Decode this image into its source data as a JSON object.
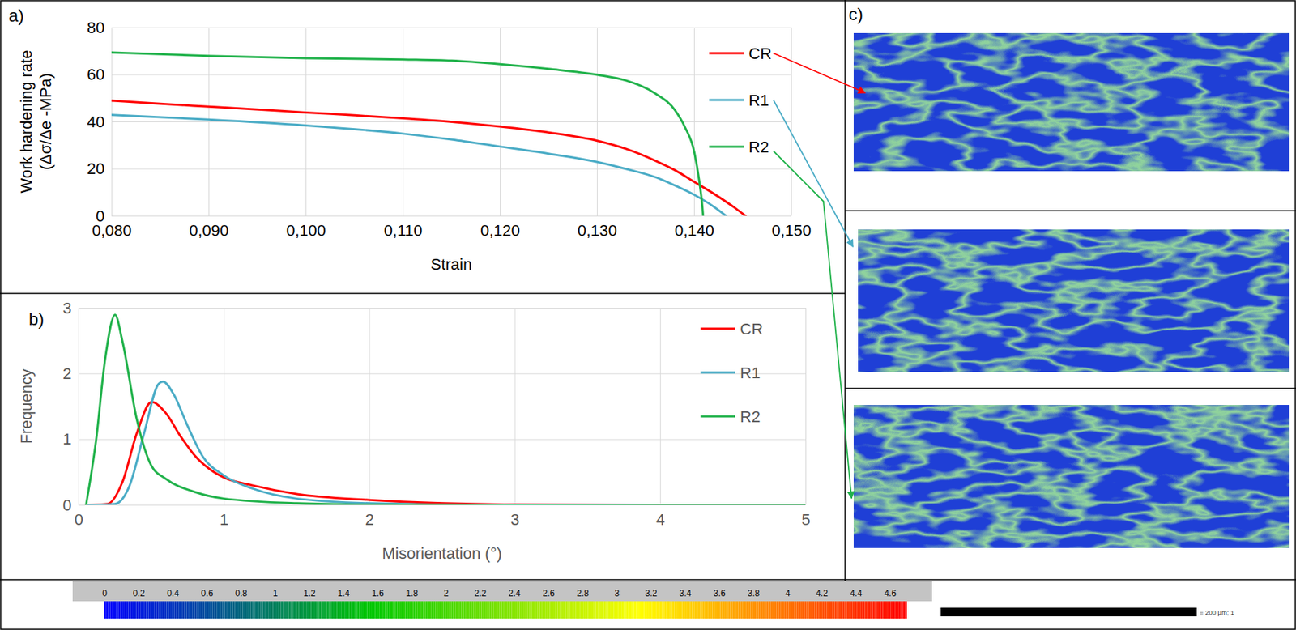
{
  "chart_data": [
    {
      "panel": "a)",
      "type": "line",
      "xlabel": "Strain",
      "ylabel": "Work hardening rate (Δσ/Δe -MPa)",
      "xlim": [
        0.08,
        0.15
      ],
      "xticks": [
        {
          "value": 0.08,
          "label": "0,080"
        },
        {
          "value": 0.09,
          "label": "0,090"
        },
        {
          "value": 0.1,
          "label": "0,100"
        },
        {
          "value": 0.11,
          "label": "0,110"
        },
        {
          "value": 0.12,
          "label": "0,120"
        },
        {
          "value": 0.13,
          "label": "0,130"
        },
        {
          "value": 0.14,
          "label": "0,140"
        },
        {
          "value": 0.15,
          "label": "0,150"
        }
      ],
      "ylim": [
        0,
        80
      ],
      "yticks": [
        0,
        20,
        40,
        60,
        80
      ],
      "grid": true,
      "legend": "top-right",
      "series": [
        {
          "name": "CR",
          "color": "#ff0000",
          "x": [
            0.08,
            0.085,
            0.09,
            0.095,
            0.1,
            0.105,
            0.11,
            0.115,
            0.12,
            0.125,
            0.13,
            0.133,
            0.136,
            0.138,
            0.14,
            0.142,
            0.144,
            0.1453
          ],
          "values": [
            49,
            47.7,
            46.5,
            45.3,
            44,
            42.8,
            41.5,
            40,
            38,
            35.5,
            32,
            28.5,
            23.5,
            19.5,
            14.5,
            9.5,
            4,
            0
          ]
        },
        {
          "name": "R1",
          "color": "#4bacc6",
          "x": [
            0.08,
            0.09,
            0.1,
            0.11,
            0.115,
            0.12,
            0.125,
            0.13,
            0.133,
            0.136,
            0.138,
            0.14,
            0.142,
            0.1433
          ],
          "values": [
            43,
            41,
            38.5,
            35,
            32.5,
            29.5,
            26.5,
            23,
            20,
            16.5,
            13,
            9,
            4,
            0
          ]
        },
        {
          "name": "R2",
          "color": "#21b24b",
          "x": [
            0.08,
            0.09,
            0.1,
            0.11,
            0.115,
            0.12,
            0.125,
            0.13,
            0.133,
            0.136,
            0.138,
            0.139,
            0.14,
            0.1405,
            0.1408,
            0.1409
          ],
          "values": [
            69.5,
            68,
            67,
            66.5,
            66,
            64.5,
            62.5,
            60,
            57.5,
            52,
            45,
            38,
            27,
            15,
            5,
            0
          ]
        }
      ]
    },
    {
      "panel": "b)",
      "type": "line",
      "xlabel": "Misorientation (°)",
      "ylabel": "Frequency",
      "xlim": [
        0,
        5
      ],
      "xticks": [
        0,
        1,
        2,
        3,
        4,
        5
      ],
      "ylim": [
        0,
        3
      ],
      "yticks": [
        0,
        1,
        2,
        3
      ],
      "grid": true,
      "legend": "top-right",
      "series": [
        {
          "name": "CR",
          "color": "#ff0000",
          "x": [
            0.05,
            0.2,
            0.3,
            0.4,
            0.5,
            0.6,
            0.7,
            0.8,
            0.9,
            1.0,
            1.2,
            1.5,
            2.0,
            2.5,
            3.0,
            4.0,
            5.0
          ],
          "values": [
            0,
            0.02,
            0.35,
            1.1,
            1.57,
            1.4,
            1.05,
            0.75,
            0.55,
            0.42,
            0.3,
            0.17,
            0.08,
            0.03,
            0.01,
            0,
            0
          ]
        },
        {
          "name": "R1",
          "color": "#4bacc6",
          "x": [
            0.05,
            0.25,
            0.35,
            0.45,
            0.55,
            0.58,
            0.65,
            0.75,
            0.85,
            1.0,
            1.2,
            1.5,
            2.0,
            3.0,
            4.0,
            5.0
          ],
          "values": [
            0,
            0.02,
            0.3,
            1.1,
            1.85,
            1.88,
            1.7,
            1.2,
            0.75,
            0.45,
            0.25,
            0.1,
            0.03,
            0,
            0,
            0
          ]
        },
        {
          "name": "R2",
          "color": "#21b24b",
          "x": [
            0.05,
            0.12,
            0.18,
            0.25,
            0.3,
            0.4,
            0.5,
            0.6,
            0.8,
            1.0,
            1.5,
            2.0,
            3.0,
            5.0
          ],
          "values": [
            0,
            1.0,
            2.2,
            2.9,
            2.5,
            1.3,
            0.6,
            0.4,
            0.2,
            0.1,
            0.03,
            0.01,
            0,
            0
          ]
        }
      ]
    }
  ],
  "panel_c": {
    "panel": "c)",
    "maps": [
      "CR",
      "R1",
      "R2"
    ]
  },
  "colorbar": {
    "range": [
      0,
      4.7
    ],
    "ticks": [
      0,
      0.2,
      0.4,
      0.6,
      0.8,
      1,
      1.2,
      1.4,
      1.6,
      1.8,
      2,
      2.2,
      2.4,
      2.6,
      2.8,
      3,
      3.2,
      3.4,
      3.6,
      3.8,
      4,
      4.2,
      4.4,
      4.6
    ],
    "colors": [
      "#0000ff",
      "#00c800",
      "#ffff00",
      "#ff0000"
    ]
  },
  "scale_bar": {
    "label": "= 200 µm; 1"
  }
}
